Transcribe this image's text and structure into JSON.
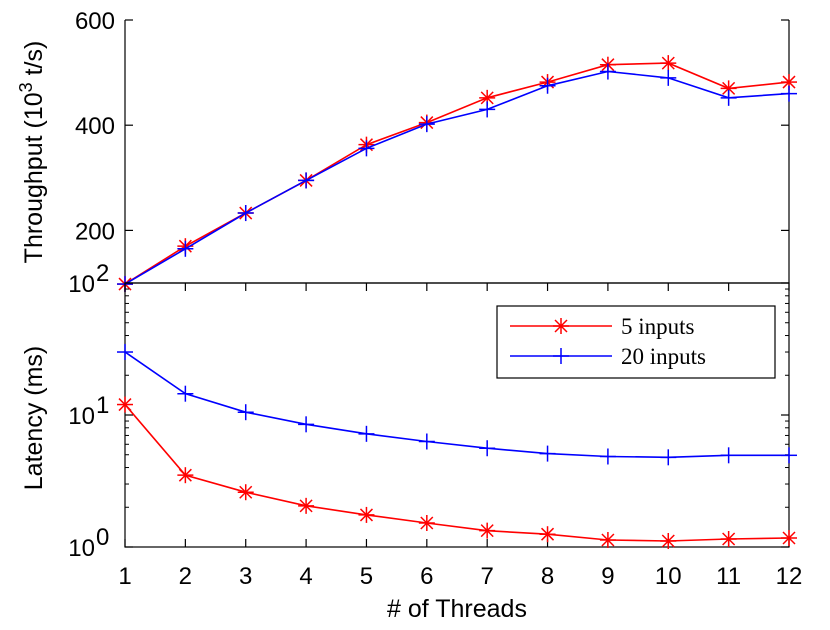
{
  "chart_data": [
    {
      "type": "line",
      "panel": "top",
      "ylabel": "Throughput (10^3 t/s)",
      "ylabel_parts": {
        "prefix": "Throughput (10",
        "superscript": "3",
        "suffix": " t/s)"
      },
      "ylim": [
        100,
        600
      ],
      "yticks": [
        200,
        400,
        600
      ],
      "ytick_labels": [
        "200",
        "400",
        "600"
      ],
      "x": [
        1,
        2,
        3,
        4,
        5,
        6,
        7,
        8,
        9,
        10,
        11,
        12
      ],
      "series": [
        {
          "name": "5 inputs",
          "color": "#ff0000",
          "marker": "star",
          "values": [
            98,
            170,
            233,
            295,
            363,
            405,
            452,
            482,
            515,
            518,
            470,
            482
          ]
        },
        {
          "name": "20 inputs",
          "color": "#0000ff",
          "marker": "plus",
          "values": [
            98,
            165,
            233,
            295,
            356,
            402,
            430,
            475,
            502,
            490,
            452,
            460
          ]
        }
      ]
    },
    {
      "type": "line",
      "panel": "bottom",
      "scale": "log",
      "xlabel": "# of Threads",
      "ylabel": "Latency (ms)",
      "ylim": [
        1,
        100
      ],
      "yticks": [
        {
          "base": "10",
          "exp": "0"
        },
        {
          "base": "10",
          "exp": "1"
        },
        {
          "base": "10",
          "exp": "2"
        }
      ],
      "x": [
        1,
        2,
        3,
        4,
        5,
        6,
        7,
        8,
        9,
        10,
        11,
        12
      ],
      "xtick_labels": [
        "1",
        "2",
        "3",
        "4",
        "5",
        "6",
        "7",
        "8",
        "9",
        "10",
        "11",
        "12"
      ],
      "legend": {
        "placement": "top-right",
        "entries": [
          "5 inputs",
          "20 inputs"
        ]
      },
      "series": [
        {
          "name": "5 inputs",
          "color": "#ff0000",
          "marker": "star",
          "values": [
            12,
            3.5,
            2.6,
            2.05,
            1.75,
            1.52,
            1.33,
            1.25,
            1.13,
            1.11,
            1.15,
            1.17
          ]
        },
        {
          "name": "20 inputs",
          "color": "#0000ff",
          "marker": "plus",
          "values": [
            30,
            14.5,
            10.5,
            8.5,
            7.2,
            6.3,
            5.6,
            5.1,
            4.85,
            4.78,
            4.95,
            4.95
          ]
        }
      ]
    }
  ]
}
